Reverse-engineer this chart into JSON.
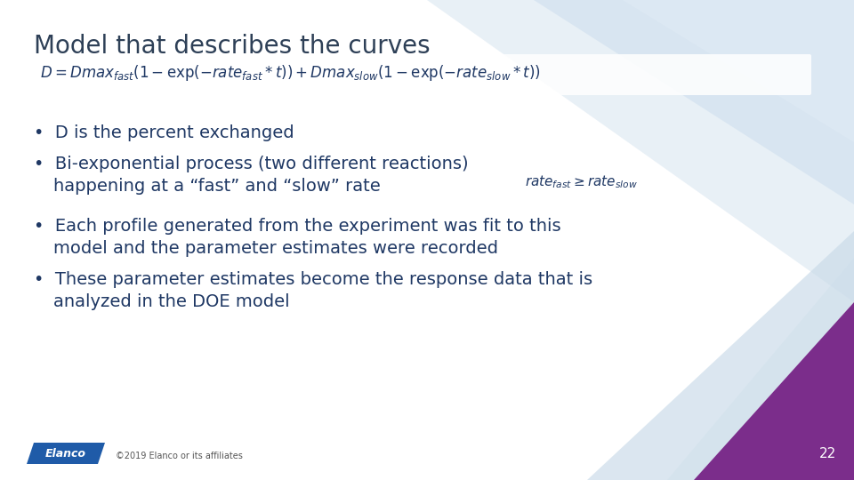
{
  "title": "Model that describes the curves",
  "title_color": "#2E4057",
  "title_fontsize": 20,
  "bg_color": "#FFFFFF",
  "text_color": "#1F3864",
  "purple_color": "#7B2D8B",
  "light_blue1": "#D6E4F0",
  "light_blue2": "#C5D8EC",
  "light_blue3": "#E8F0F8",
  "footer_text": "©2019 Elanco or its affiliates",
  "page_number": "22",
  "elanco_color": "#1F5BA8",
  "font_size_bullet": 14,
  "font_size_formula": 12,
  "font_size_footer": 7,
  "font_size_rate": 11
}
